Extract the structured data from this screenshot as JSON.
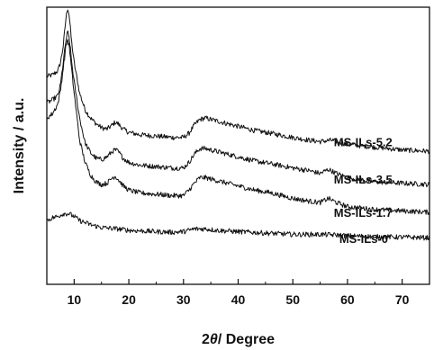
{
  "chart_data": {
    "type": "line",
    "xlabel_prefix": "2",
    "xlabel_symbol": "θ",
    "xlabel_suffix": "/ Degree",
    "ylabel": "Intensity / a.u.",
    "xlim": [
      5,
      75
    ],
    "xticks": [
      10,
      20,
      30,
      40,
      50,
      60,
      70
    ],
    "ylim": [
      0,
      1
    ],
    "y_ticks_shown": false,
    "grid": false,
    "legend": "none",
    "series": [
      {
        "name": "MS-ILs-5.2",
        "label_x": 57.5,
        "label_y": 0.515,
        "points": [
          [
            5,
            0.75
          ],
          [
            6,
            0.755
          ],
          [
            7,
            0.77
          ],
          [
            7.5,
            0.8
          ],
          [
            8,
            0.86
          ],
          [
            8.5,
            0.96
          ],
          [
            8.8,
            1.0
          ],
          [
            9.1,
            0.97
          ],
          [
            9.5,
            0.88
          ],
          [
            10,
            0.8
          ],
          [
            11,
            0.69
          ],
          [
            12,
            0.63
          ],
          [
            13,
            0.6
          ],
          [
            14,
            0.58
          ],
          [
            15,
            0.565
          ],
          [
            16,
            0.56
          ],
          [
            17,
            0.575
          ],
          [
            17.5,
            0.585
          ],
          [
            18,
            0.58
          ],
          [
            19,
            0.56
          ],
          [
            20,
            0.548
          ],
          [
            22,
            0.54
          ],
          [
            25,
            0.535
          ],
          [
            28,
            0.53
          ],
          [
            30,
            0.53
          ],
          [
            31,
            0.545
          ],
          [
            32,
            0.575
          ],
          [
            33,
            0.595
          ],
          [
            34,
            0.6
          ],
          [
            35,
            0.595
          ],
          [
            37,
            0.585
          ],
          [
            40,
            0.57
          ],
          [
            43,
            0.555
          ],
          [
            46,
            0.545
          ],
          [
            50,
            0.53
          ],
          [
            53,
            0.52
          ],
          [
            55,
            0.515
          ],
          [
            57,
            0.52
          ],
          [
            58,
            0.515
          ],
          [
            60,
            0.505
          ],
          [
            65,
            0.495
          ],
          [
            70,
            0.485
          ],
          [
            75,
            0.48
          ]
        ]
      },
      {
        "name": "MS-ILs-3.5",
        "label_x": 57.5,
        "label_y": 0.38,
        "points": [
          [
            5,
            0.655
          ],
          [
            6,
            0.665
          ],
          [
            7,
            0.68
          ],
          [
            7.5,
            0.72
          ],
          [
            8,
            0.8
          ],
          [
            8.5,
            0.88
          ],
          [
            8.8,
            0.91
          ],
          [
            9.1,
            0.89
          ],
          [
            9.5,
            0.81
          ],
          [
            10,
            0.73
          ],
          [
            11,
            0.6
          ],
          [
            12,
            0.51
          ],
          [
            13,
            0.475
          ],
          [
            14,
            0.455
          ],
          [
            15,
            0.45
          ],
          [
            16,
            0.46
          ],
          [
            17,
            0.48
          ],
          [
            17.5,
            0.485
          ],
          [
            18,
            0.48
          ],
          [
            19,
            0.455
          ],
          [
            20,
            0.44
          ],
          [
            22,
            0.43
          ],
          [
            25,
            0.425
          ],
          [
            28,
            0.42
          ],
          [
            30,
            0.42
          ],
          [
            31,
            0.44
          ],
          [
            32,
            0.47
          ],
          [
            33,
            0.49
          ],
          [
            34,
            0.49
          ],
          [
            35,
            0.485
          ],
          [
            37,
            0.475
          ],
          [
            40,
            0.46
          ],
          [
            43,
            0.445
          ],
          [
            46,
            0.435
          ],
          [
            50,
            0.42
          ],
          [
            53,
            0.41
          ],
          [
            55,
            0.4
          ],
          [
            56.5,
            0.415
          ],
          [
            58,
            0.4
          ],
          [
            60,
            0.385
          ],
          [
            65,
            0.37
          ],
          [
            70,
            0.365
          ],
          [
            75,
            0.36
          ]
        ]
      },
      {
        "name": "MS-ILs-1.7",
        "label_x": 57.5,
        "label_y": 0.26,
        "points": [
          [
            5,
            0.6
          ],
          [
            6,
            0.615
          ],
          [
            7,
            0.65
          ],
          [
            7.5,
            0.7
          ],
          [
            8,
            0.78
          ],
          [
            8.5,
            0.86
          ],
          [
            8.8,
            0.885
          ],
          [
            9.1,
            0.86
          ],
          [
            9.5,
            0.78
          ],
          [
            10,
            0.69
          ],
          [
            11,
            0.52
          ],
          [
            12,
            0.44
          ],
          [
            13,
            0.395
          ],
          [
            14,
            0.37
          ],
          [
            15,
            0.36
          ],
          [
            16,
            0.365
          ],
          [
            17,
            0.385
          ],
          [
            17.5,
            0.39
          ],
          [
            18,
            0.38
          ],
          [
            19,
            0.355
          ],
          [
            20,
            0.34
          ],
          [
            22,
            0.33
          ],
          [
            25,
            0.325
          ],
          [
            28,
            0.32
          ],
          [
            30,
            0.32
          ],
          [
            31,
            0.34
          ],
          [
            32,
            0.365
          ],
          [
            33,
            0.385
          ],
          [
            34,
            0.385
          ],
          [
            35,
            0.38
          ],
          [
            37,
            0.37
          ],
          [
            40,
            0.355
          ],
          [
            43,
            0.34
          ],
          [
            46,
            0.33
          ],
          [
            50,
            0.31
          ],
          [
            53,
            0.3
          ],
          [
            55,
            0.295
          ],
          [
            56.5,
            0.31
          ],
          [
            58,
            0.295
          ],
          [
            60,
            0.28
          ],
          [
            65,
            0.27
          ],
          [
            70,
            0.265
          ],
          [
            75,
            0.26
          ]
        ]
      },
      {
        "name": "MS-ILs-0",
        "label_x": 58.5,
        "label_y": 0.165,
        "points": [
          [
            5,
            0.23
          ],
          [
            6,
            0.24
          ],
          [
            7,
            0.245
          ],
          [
            8,
            0.255
          ],
          [
            9,
            0.255
          ],
          [
            10,
            0.245
          ],
          [
            11,
            0.23
          ],
          [
            13,
            0.215
          ],
          [
            15,
            0.205
          ],
          [
            18,
            0.2
          ],
          [
            20,
            0.195
          ],
          [
            25,
            0.19
          ],
          [
            28,
            0.188
          ],
          [
            30,
            0.19
          ],
          [
            32,
            0.2
          ],
          [
            34,
            0.2
          ],
          [
            36,
            0.195
          ],
          [
            40,
            0.19
          ],
          [
            45,
            0.185
          ],
          [
            50,
            0.18
          ],
          [
            55,
            0.18
          ],
          [
            58,
            0.178
          ],
          [
            60,
            0.175
          ],
          [
            65,
            0.172
          ],
          [
            70,
            0.17
          ],
          [
            75,
            0.168
          ]
        ]
      }
    ]
  }
}
